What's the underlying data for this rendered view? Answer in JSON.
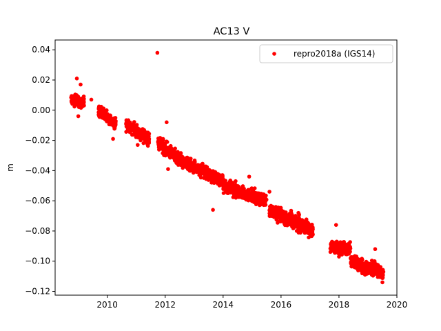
{
  "chart_data": {
    "type": "scatter",
    "title": "AC13 V",
    "xlabel": "",
    "ylabel": "m",
    "xlim": [
      2008.2,
      2020.0
    ],
    "ylim": [
      -0.1225,
      0.0465
    ],
    "xticks": [
      2010,
      2012,
      2014,
      2016,
      2018,
      2020
    ],
    "yticks": [
      -0.12,
      -0.1,
      -0.08,
      -0.06,
      -0.04,
      -0.02,
      0.0,
      0.02,
      0.04
    ],
    "ytick_labels": [
      "−0.12",
      "−0.10",
      "−0.08",
      "−0.06",
      "−0.04",
      "−0.02",
      "0.00",
      "0.02",
      "0.04"
    ],
    "xtick_labels": [
      "2010",
      "2012",
      "2014",
      "2016",
      "2018",
      "2020"
    ],
    "grid": false,
    "legend": {
      "position": "top-right",
      "entries": [
        "repro2018a (IGS14)"
      ]
    },
    "colors": {
      "series": "#ff0000",
      "axes": "#000000",
      "background": "#ffffff"
    },
    "series": [
      {
        "name": "repro2018a (IGS14)",
        "marker": "circle",
        "segments": [
          {
            "x0": 2008.75,
            "x1": 2009.2,
            "y0": 0.007,
            "y1": 0.005,
            "spread": 0.0035
          },
          {
            "x0": 2009.7,
            "x1": 2010.3,
            "y0": 0.0,
            "y1": -0.009,
            "spread": 0.0035
          },
          {
            "x0": 2010.65,
            "x1": 2011.45,
            "y0": -0.01,
            "y1": -0.019,
            "spread": 0.004
          },
          {
            "x0": 2011.75,
            "x1": 2012.5,
            "y0": -0.022,
            "y1": -0.033,
            "spread": 0.0045
          },
          {
            "x0": 2012.5,
            "x1": 2014.0,
            "y0": -0.033,
            "y1": -0.047,
            "spread": 0.004
          },
          {
            "x0": 2014.0,
            "x1": 2015.5,
            "y0": -0.05,
            "y1": -0.06,
            "spread": 0.004
          },
          {
            "x0": 2015.6,
            "x1": 2017.1,
            "y0": -0.066,
            "y1": -0.08,
            "spread": 0.0045
          },
          {
            "x0": 2017.7,
            "x1": 2018.4,
            "y0": -0.09,
            "y1": -0.092,
            "spread": 0.004
          },
          {
            "x0": 2018.4,
            "x1": 2019.55,
            "y0": -0.1,
            "y1": -0.108,
            "spread": 0.004
          }
        ],
        "points": [
          [
            2011.73,
            0.038
          ],
          [
            2013.65,
            -0.066
          ],
          [
            2008.95,
            0.021
          ],
          [
            2009.08,
            0.017
          ],
          [
            2009.45,
            0.007
          ],
          [
            2009.0,
            -0.004
          ],
          [
            2010.2,
            -0.019
          ],
          [
            2011.05,
            -0.023
          ],
          [
            2012.05,
            -0.008
          ],
          [
            2012.1,
            -0.039
          ],
          [
            2015.6,
            -0.054
          ],
          [
            2014.9,
            -0.044
          ],
          [
            2016.6,
            -0.068
          ],
          [
            2017.9,
            -0.076
          ],
          [
            2018.0,
            -0.097
          ],
          [
            2019.25,
            -0.092
          ],
          [
            2019.5,
            -0.114
          ],
          [
            2018.9,
            -0.109
          ]
        ]
      }
    ]
  }
}
